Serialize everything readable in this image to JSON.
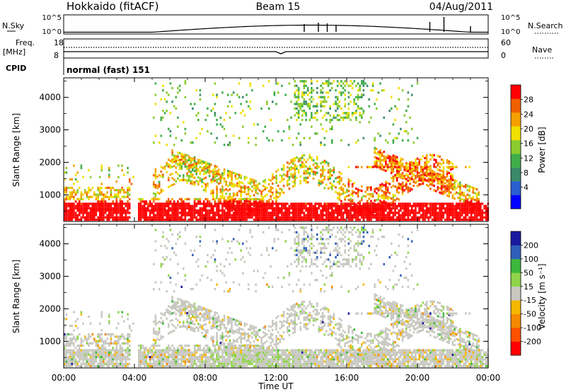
{
  "header": {
    "station": "Hokkaido (fitACF)",
    "beam": "Beam 15",
    "date": "04/Aug/2011"
  },
  "strip": {
    "nsky_label": "N.Sky",
    "nsky_ticks": [
      "10^5",
      "10^0"
    ],
    "nsearch_label": "N.Search",
    "nsearch_ticks": [
      "10^5",
      "10^0"
    ],
    "freq_label": "Freq.",
    "freq_unit": "[MHz]",
    "freq_ticks": [
      "18",
      "8"
    ],
    "nave_label": "Nave",
    "nave_ticks": [
      "60",
      "0"
    ],
    "cpid_label": "CPID",
    "cpid_value": "normal (fast) 151"
  },
  "chart_data": [
    {
      "type": "heatmap",
      "title": "",
      "xlabel": "",
      "ylabel": "Slant Range [km]",
      "xlim": [
        0,
        24
      ],
      "ylim": [
        180,
        4600
      ],
      "x_ticks": [
        "00:00",
        "04:00",
        "08:00",
        "12:00",
        "16:00",
        "20:00",
        "00:00"
      ],
      "y_ticks": [
        1000,
        2000,
        3000,
        4000
      ],
      "colorbar_label": "Power [dB]",
      "colorbar_ticks": [
        "28",
        "24",
        "20",
        "16",
        "12",
        "8",
        "4"
      ],
      "colorbar_range": [
        0,
        30
      ],
      "colors": [
        "#0000ff",
        "#2b5fd0",
        "#3a8a6a",
        "#3fae4a",
        "#8ccc2e",
        "#f0e000",
        "#f5a000",
        "#f06000",
        "#ff0000"
      ]
    },
    {
      "type": "heatmap",
      "title": "",
      "xlabel": "Time UT",
      "ylabel": "Slant Range [km]",
      "xlim": [
        0,
        24
      ],
      "ylim": [
        180,
        4600
      ],
      "x_ticks": [
        "00:00",
        "04:00",
        "08:00",
        "12:00",
        "16:00",
        "20:00",
        "00:00"
      ],
      "y_ticks": [
        1000,
        2000,
        3000,
        4000
      ],
      "colorbar_label": "Velocity [m s⁻¹]",
      "colorbar_ticks": [
        "200",
        "100",
        "50",
        "15",
        "-15",
        "-50",
        "-100",
        "-200"
      ],
      "colorbar_range": [
        -250,
        250
      ],
      "colors": [
        "#ff0000",
        "#ff5000",
        "#f58a00",
        "#f5b800",
        "#c8c8c0",
        "#8fd44a",
        "#3cb83c",
        "#2f5fb8",
        "#1a1aa0"
      ]
    }
  ]
}
